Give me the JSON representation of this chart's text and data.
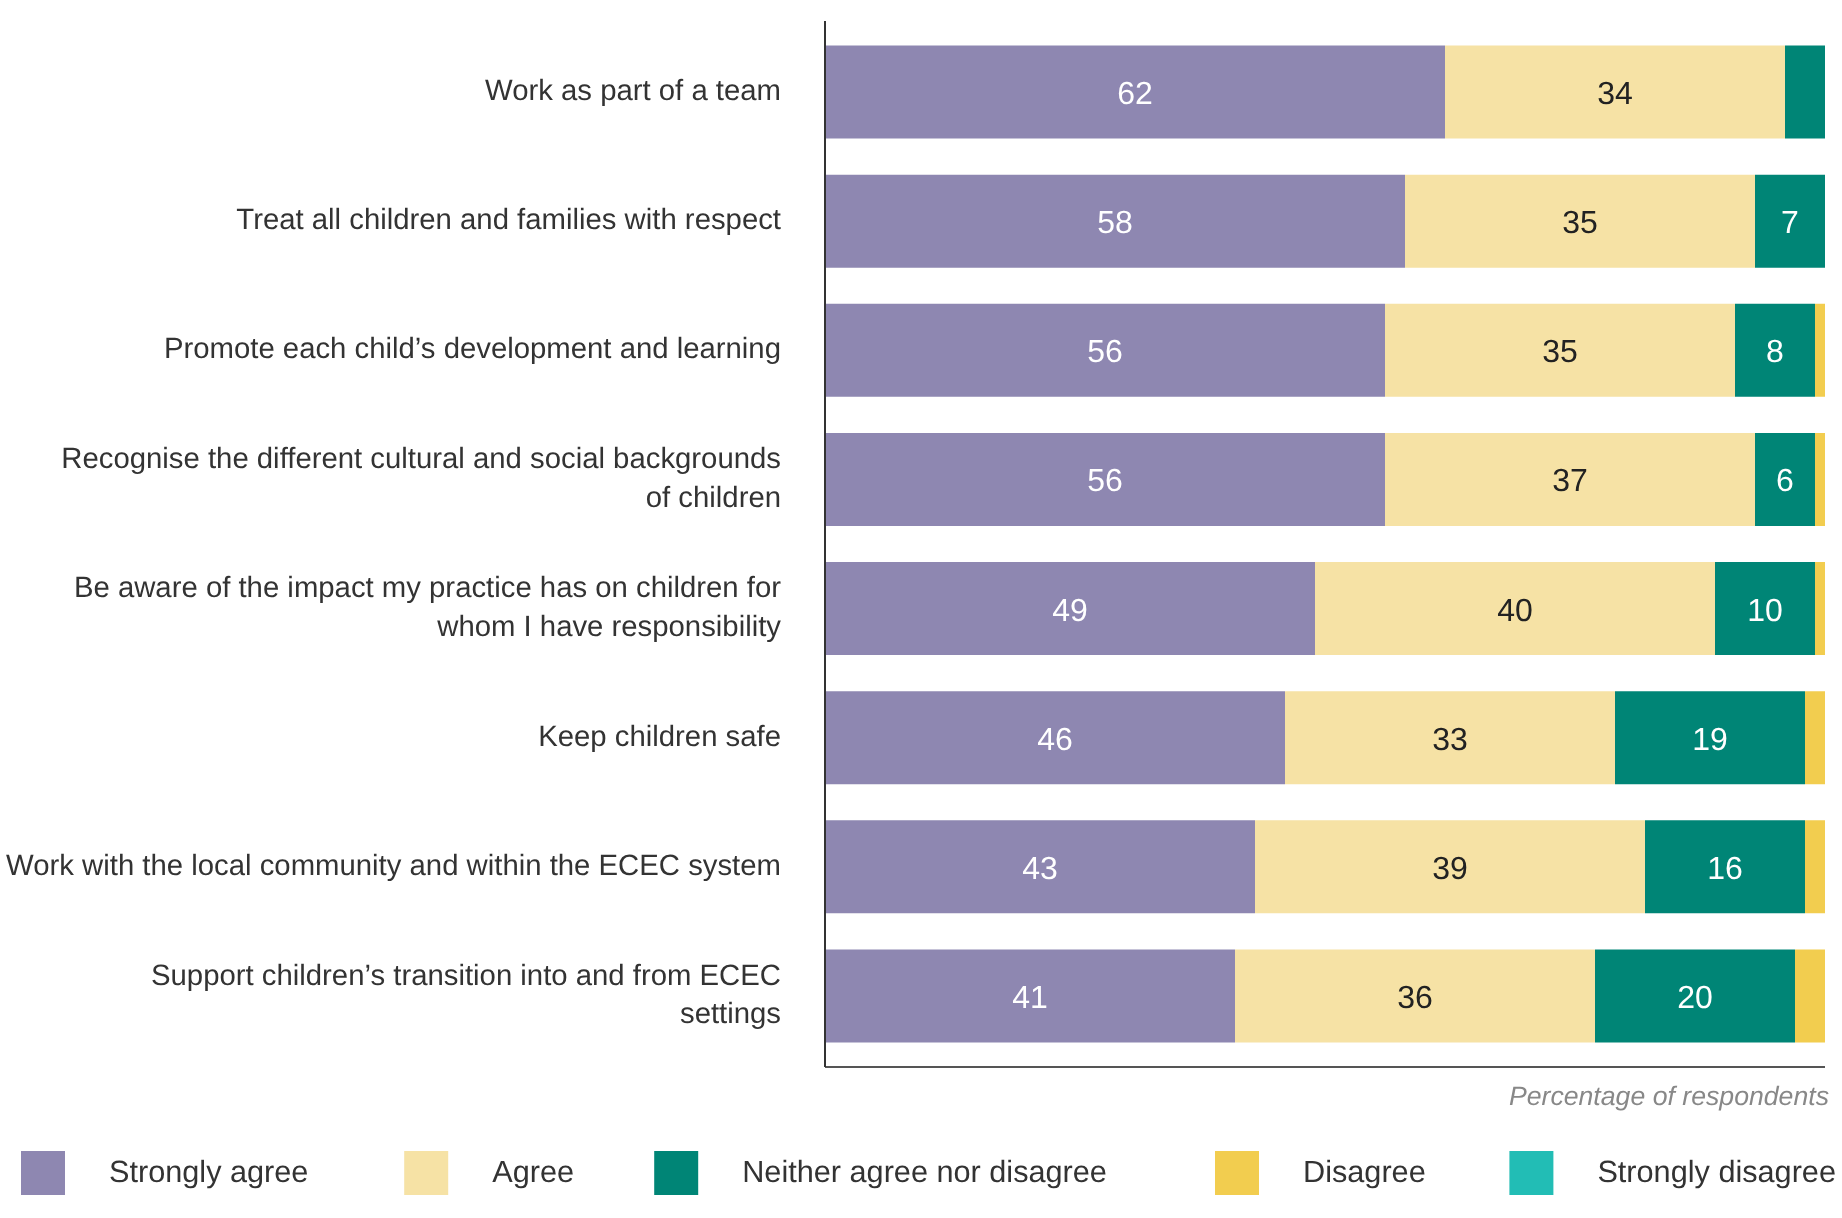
{
  "chart_data": {
    "type": "bar",
    "orientation": "horizontal",
    "stacked": true,
    "categories": [
      "Work as part of a team",
      "Treat all children and families with respect",
      "Promote each child’s development and learning",
      "Recognise the different cultural and social backgrounds of children",
      "Be aware of the impact my practice has on children for whom I have responsibility",
      "Keep children safe",
      "Work with the local community and within the ECEC system",
      "Support children’s transition into and from ECEC settings"
    ],
    "series": [
      {
        "name": "Strongly agree",
        "color": "#8e87b1",
        "values": [
          62,
          58,
          56,
          56,
          49,
          46,
          43,
          41
        ],
        "value_labels": [
          "62",
          "58",
          "56",
          "56",
          "49",
          "46",
          "43",
          "41"
        ]
      },
      {
        "name": "Agree",
        "color": "#f6e2a5",
        "values": [
          34,
          35,
          35,
          37,
          40,
          33,
          39,
          36
        ],
        "value_labels": [
          "34",
          "35",
          "35",
          "37",
          "40",
          "33",
          "39",
          "36"
        ]
      },
      {
        "name": "Neither agree nor disagree",
        "color": "#008576",
        "values": [
          4,
          7,
          8,
          6,
          10,
          19,
          16,
          20
        ],
        "value_labels": [
          null,
          "7",
          "8",
          "6",
          "10",
          "19",
          "16",
          "20"
        ]
      },
      {
        "name": "Disagree",
        "color": "#f2cd4f",
        "values": [
          0,
          0,
          1,
          1,
          1,
          2,
          2,
          3
        ],
        "value_labels": [
          null,
          null,
          null,
          null,
          null,
          null,
          null,
          null
        ]
      },
      {
        "name": "Strongly disagree",
        "color": "#22bdb5",
        "values": [
          0,
          0,
          0,
          0,
          0,
          0,
          0,
          0
        ],
        "value_labels": [
          null,
          null,
          null,
          null,
          null,
          null,
          null,
          null
        ]
      }
    ],
    "xlim": [
      0,
      100
    ],
    "xlabel": "Percentage of respondents",
    "tick_labels": "y",
    "legend": "bottom"
  }
}
